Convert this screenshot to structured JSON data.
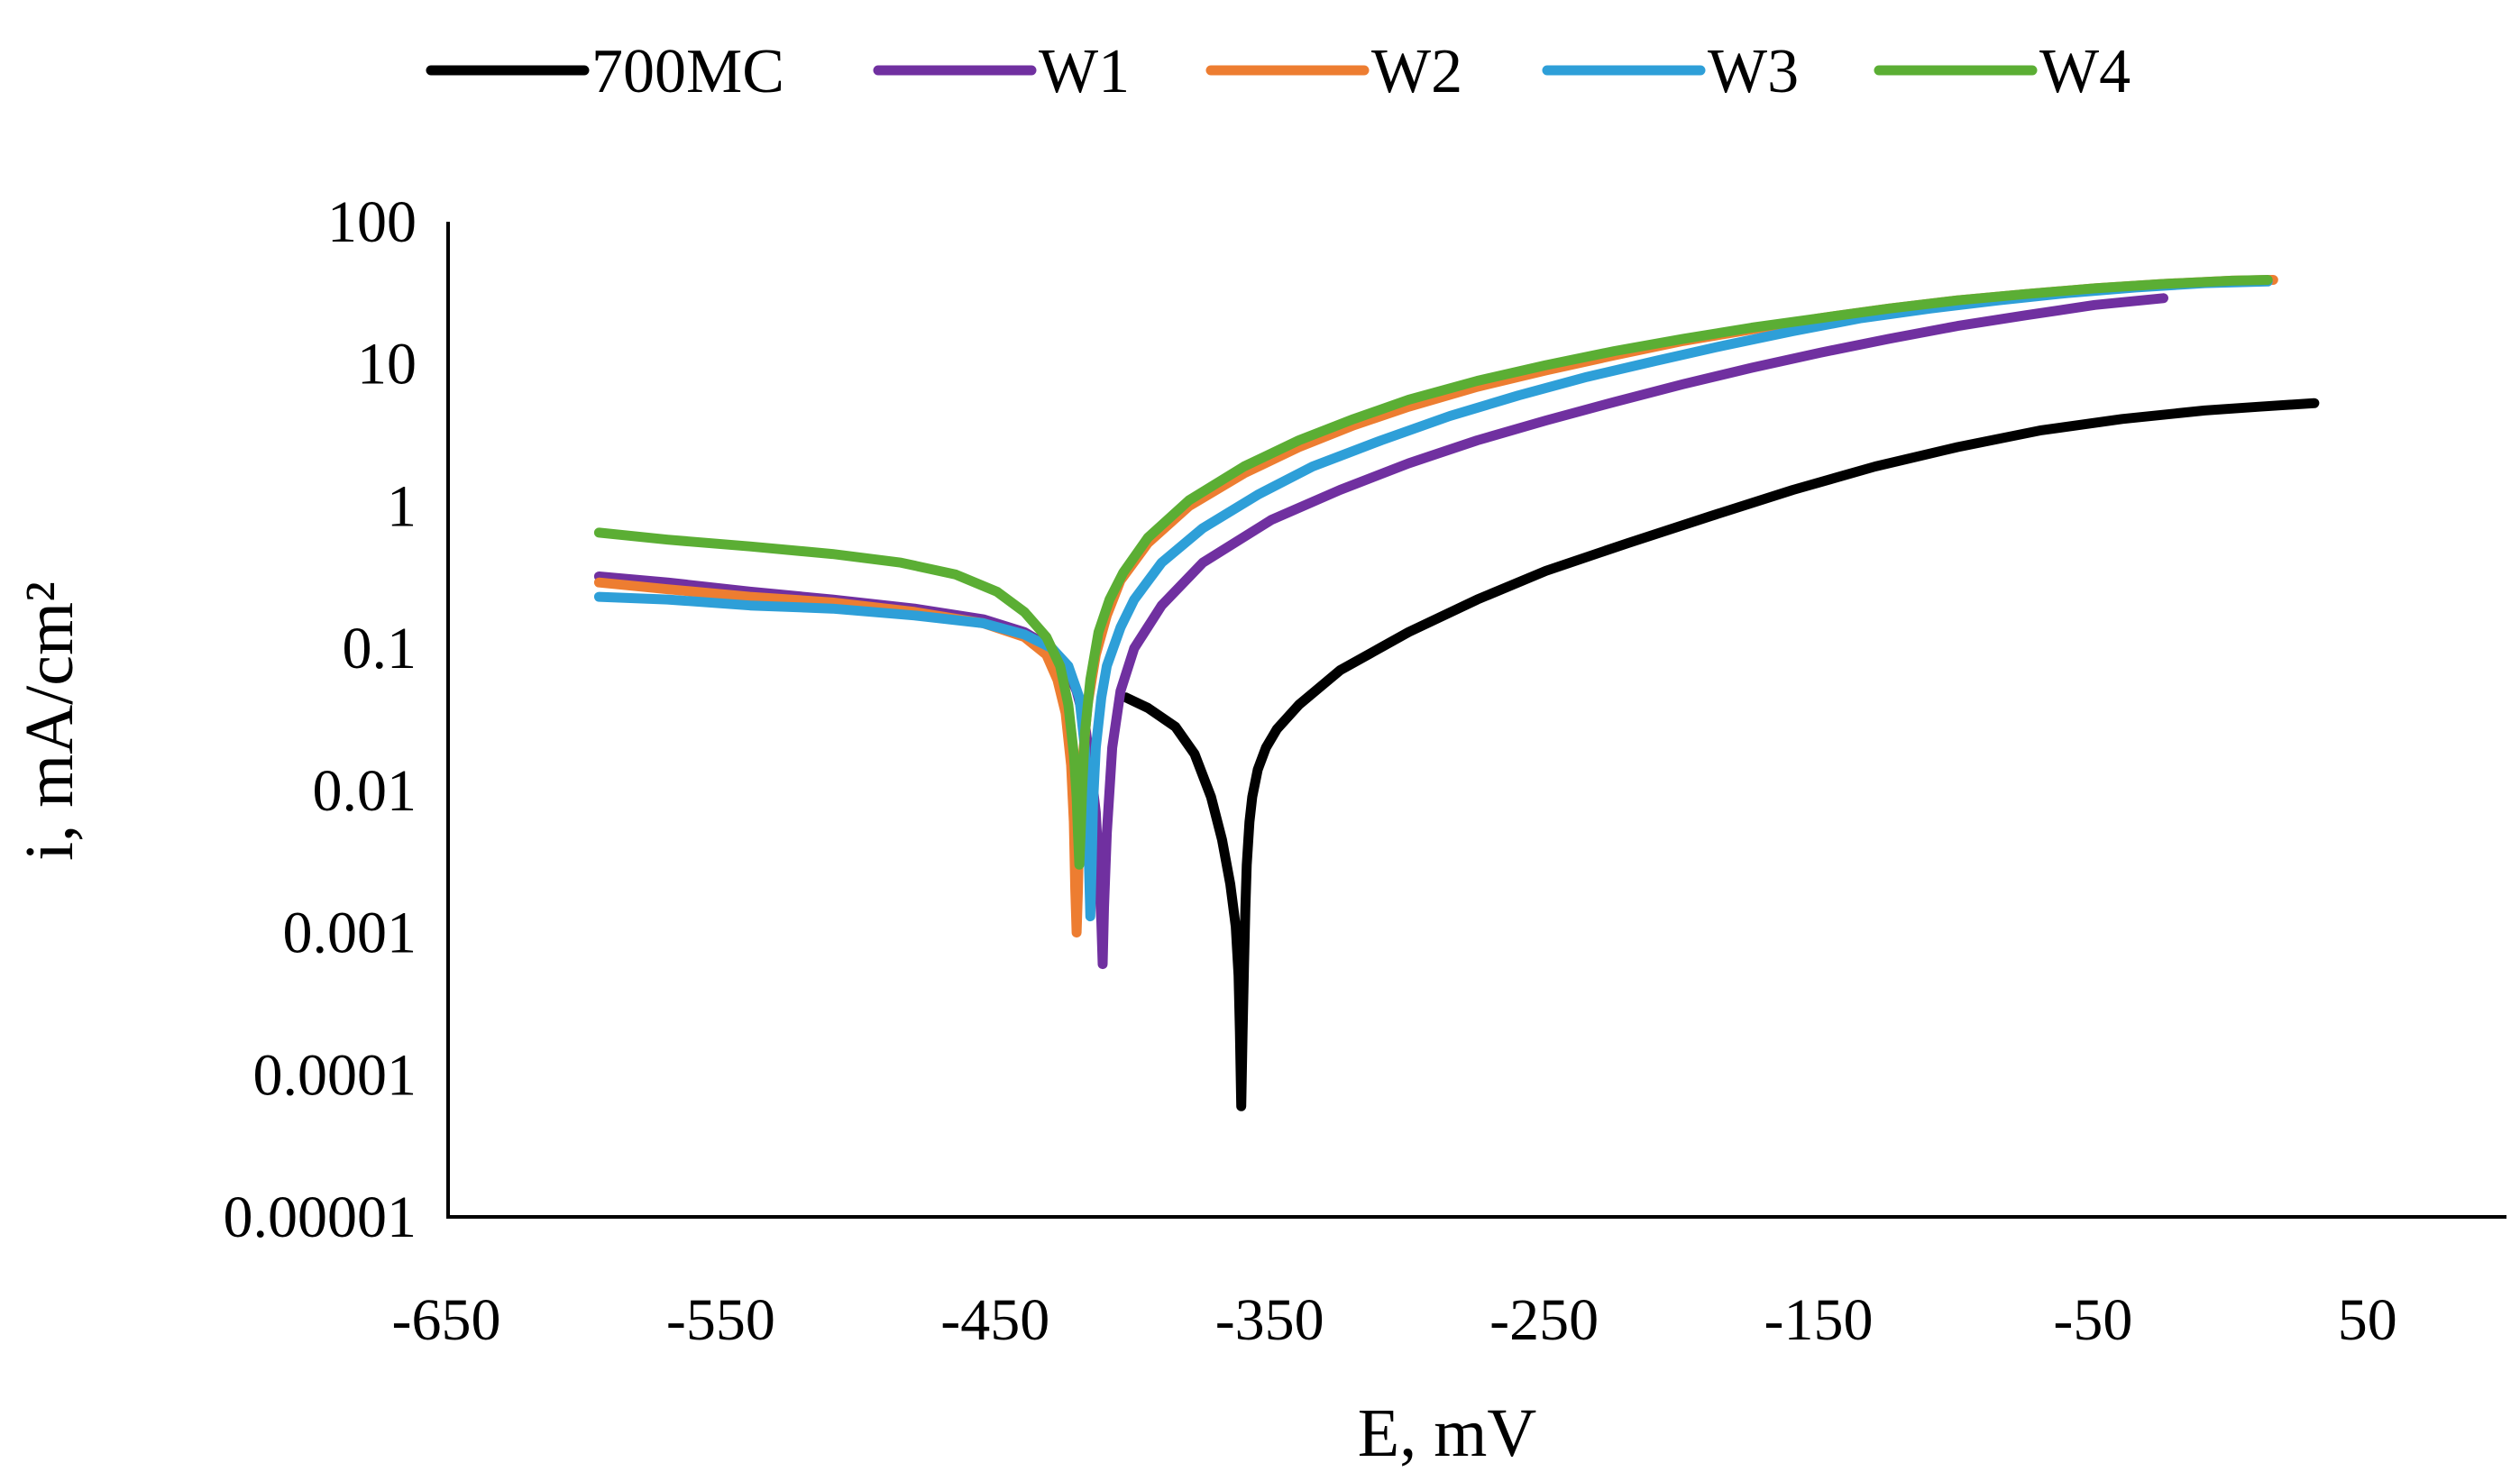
{
  "chart_data": {
    "type": "line",
    "title": "",
    "xlabel": "E, mV",
    "ylabel": "i, mA/cm²",
    "xlim": [
      -650,
      100
    ],
    "ylim": [
      1e-05,
      100
    ],
    "yscale": "log",
    "x_ticks": [
      -650,
      -550,
      -450,
      -350,
      -250,
      -150,
      -50,
      50
    ],
    "x_tick_labels": [
      "-650",
      "-550",
      "-450",
      "-350",
      "-250",
      "-150",
      "-50",
      "50"
    ],
    "y_ticks": [
      1e-05,
      0.0001,
      0.001,
      0.01,
      0.1,
      1,
      10,
      100
    ],
    "y_tick_labels": [
      "0.00001",
      "0.0001",
      "0.001",
      "0.01",
      "0.1",
      "1",
      "10",
      "100"
    ],
    "grid": false,
    "legend_position": "top",
    "series": [
      {
        "name": "700MC",
        "color": "#000000",
        "x": [
          -403,
          -395,
          -385,
          -378,
          -372,
          -368,
          -365,
          -363,
          -362,
          -361.5,
          -361,
          -360.5,
          -360,
          -359.5,
          -359,
          -358,
          -357,
          -355,
          -352,
          -348,
          -340,
          -325,
          -300,
          -275,
          -250,
          -220,
          -190,
          -160,
          -130,
          -100,
          -70,
          -40,
          -10,
          10,
          30
        ],
        "y": [
          0.045,
          0.038,
          0.028,
          0.018,
          0.009,
          0.0045,
          0.0022,
          0.0011,
          0.0005,
          0.0002,
          6e-05,
          0.0002,
          0.0006,
          0.0015,
          0.003,
          0.006,
          0.009,
          0.014,
          0.02,
          0.027,
          0.04,
          0.07,
          0.13,
          0.22,
          0.35,
          0.55,
          0.85,
          1.3,
          1.9,
          2.6,
          3.4,
          4.1,
          4.7,
          5.0,
          5.3
        ]
      },
      {
        "name": "W1",
        "color": "#7030A0",
        "x": [
          -595,
          -570,
          -540,
          -510,
          -480,
          -455,
          -440,
          -430,
          -425,
          -421,
          -418,
          -416,
          -414,
          -413,
          -412,
          -411.5,
          -411,
          -410,
          -408,
          -405,
          -400,
          -390,
          -375,
          -350,
          -325,
          -300,
          -275,
          -250,
          -225,
          -200,
          -175,
          -150,
          -125,
          -100,
          -75,
          -50,
          -25
        ],
        "y": [
          0.32,
          0.29,
          0.25,
          0.22,
          0.19,
          0.16,
          0.13,
          0.1,
          0.075,
          0.05,
          0.03,
          0.015,
          0.007,
          0.003,
          0.0012,
          0.0006,
          0.0015,
          0.005,
          0.02,
          0.05,
          0.1,
          0.2,
          0.4,
          0.8,
          1.3,
          2.0,
          2.9,
          4.0,
          5.4,
          7.2,
          9.4,
          12,
          15,
          18.5,
          22,
          26,
          29
        ]
      },
      {
        "name": "W2",
        "color": "#ED7D31",
        "x": [
          -595,
          -570,
          -540,
          -510,
          -480,
          -455,
          -440,
          -432,
          -428,
          -425,
          -423,
          -422,
          -421.5,
          -421,
          -420.5,
          -420,
          -419,
          -417,
          -414,
          -410,
          -405,
          -395,
          -380,
          -360,
          -340,
          -320,
          -300,
          -275,
          -250,
          -225,
          -200,
          -175,
          -150,
          -125,
          -100,
          -75,
          -50,
          -25,
          0,
          15
        ],
        "y": [
          0.29,
          0.26,
          0.23,
          0.21,
          0.18,
          0.15,
          0.12,
          0.09,
          0.06,
          0.035,
          0.015,
          0.006,
          0.002,
          0.001,
          0.002,
          0.006,
          0.015,
          0.04,
          0.09,
          0.17,
          0.3,
          0.55,
          1.0,
          1.7,
          2.6,
          3.7,
          5.0,
          6.9,
          9.0,
          11.5,
          14.5,
          17.5,
          21,
          24.5,
          28,
          31,
          34,
          36.5,
          38.5,
          39
        ]
      },
      {
        "name": "W3",
        "color": "#2E9FD8",
        "x": [
          -595,
          -570,
          -540,
          -510,
          -480,
          -455,
          -440,
          -430,
          -424,
          -420,
          -418,
          -417,
          -416.5,
          -416,
          -415.5,
          -415,
          -414,
          -412,
          -410,
          -405,
          -400,
          -390,
          -375,
          -355,
          -335,
          -310,
          -285,
          -260,
          -235,
          -210,
          -185,
          -160,
          -135,
          -110,
          -85,
          -60,
          -35,
          -10,
          13
        ],
        "y": [
          0.23,
          0.22,
          0.2,
          0.19,
          0.17,
          0.15,
          0.125,
          0.1,
          0.075,
          0.045,
          0.02,
          0.008,
          0.003,
          0.0013,
          0.003,
          0.008,
          0.02,
          0.045,
          0.075,
          0.14,
          0.22,
          0.4,
          0.7,
          1.2,
          1.9,
          2.9,
          4.3,
          6.0,
          8.1,
          10.5,
          13.5,
          17,
          21,
          24.5,
          28,
          31.5,
          34.5,
          37,
          38
        ]
      },
      {
        "name": "W4",
        "color": "#5BAE34",
        "x": [
          -595,
          -570,
          -540,
          -510,
          -485,
          -465,
          -450,
          -440,
          -432,
          -427,
          -424,
          -422,
          -421,
          -420.5,
          -420,
          -419.5,
          -419,
          -418,
          -416,
          -413,
          -409,
          -404,
          -395,
          -380,
          -360,
          -340,
          -320,
          -300,
          -275,
          -250,
          -225,
          -200,
          -175,
          -150,
          -125,
          -100,
          -75,
          -50,
          -25,
          0,
          13
        ],
        "y": [
          0.65,
          0.58,
          0.52,
          0.46,
          0.4,
          0.33,
          0.25,
          0.18,
          0.12,
          0.075,
          0.04,
          0.018,
          0.009,
          0.005,
          0.003,
          0.005,
          0.01,
          0.025,
          0.06,
          0.13,
          0.22,
          0.34,
          0.6,
          1.1,
          1.9,
          2.9,
          4.1,
          5.6,
          7.6,
          9.8,
          12.3,
          15,
          18,
          21,
          24.5,
          28,
          31,
          34,
          36.5,
          38.5,
          39
        ]
      }
    ]
  }
}
